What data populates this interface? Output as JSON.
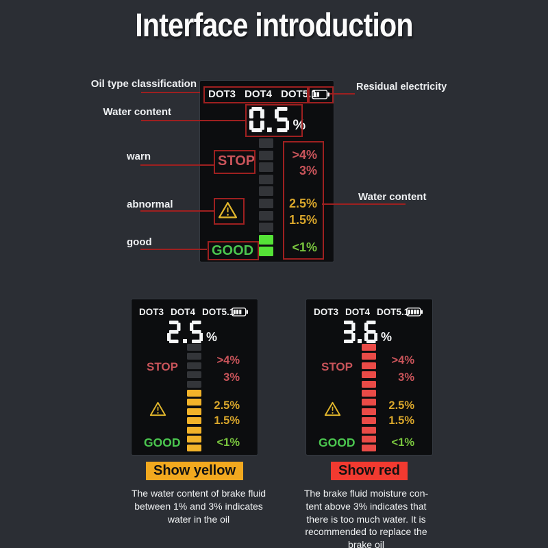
{
  "page": {
    "title": "Interface introduction"
  },
  "colors": {
    "background": "#2b2e34",
    "panel": "#0c0d0f",
    "annotation_red": "#9e2020",
    "digit_white": "#f5f6f7",
    "stop_red": "#c9545a",
    "warn_yellow": "#e0b52c",
    "good_green": "#4bc64f",
    "badge_yellow_bg": "#f2a91f",
    "badge_red_bg": "#f23a30"
  },
  "annotations": {
    "oil_type": "Oil type classification",
    "residual": "Residual electricity",
    "water_content_top": "Water content",
    "warn": "warn",
    "abnormal": "abnormal",
    "good": "good",
    "water_content_right": "Water content"
  },
  "displays": {
    "main": {
      "dots": [
        "DOT3",
        "DOT4",
        "DOT5.1"
      ],
      "battery_bars": 2,
      "reading": "0.5",
      "unit": "%",
      "stop": "STOP",
      "good": "GOOD",
      "scale": [
        {
          "text": ">4%",
          "color": "#c9545a"
        },
        {
          "text": "3%",
          "color": "#c9545a"
        },
        {
          "text": "2.5%",
          "color": "#d9a62b"
        },
        {
          "text": "1.5%",
          "color": "#d9a62b"
        },
        {
          "text": "<1%",
          "color": "#79c53e"
        }
      ],
      "bar": {
        "count": 10,
        "lit": 2,
        "on": "#55e337",
        "off": "#333539"
      }
    },
    "yellow": {
      "dots": [
        "DOT3",
        "DOT4",
        "DOT5.1"
      ],
      "battery_bars": 3,
      "reading": "2.5",
      "unit": "%",
      "stop": "STOP",
      "good": "GOOD",
      "scale": [
        {
          "text": ">4%",
          "color": "#c9545a"
        },
        {
          "text": "3%",
          "color": "#c9545a"
        },
        {
          "text": "2.5%",
          "color": "#d9a62b"
        },
        {
          "text": "1.5%",
          "color": "#d9a62b"
        },
        {
          "text": "<1%",
          "color": "#79c53e"
        }
      ],
      "bar": {
        "count": 12,
        "lit": 7,
        "on": "#f2b32a",
        "off": "#333539"
      }
    },
    "red": {
      "dots": [
        "DOT3",
        "DOT4",
        "DOT5.1"
      ],
      "battery_bars": 4,
      "reading": "3.6",
      "unit": "%",
      "stop": "STOP",
      "good": "GOOD",
      "scale": [
        {
          "text": ">4%",
          "color": "#c9545a"
        },
        {
          "text": "3%",
          "color": "#c9545a"
        },
        {
          "text": "2.5%",
          "color": "#d9a62b"
        },
        {
          "text": "1.5%",
          "color": "#d9a62b"
        },
        {
          "text": "<1%",
          "color": "#79c53e"
        }
      ],
      "bar": {
        "count": 12,
        "lit": 12,
        "on": "#ea4b47",
        "off": "#333539"
      }
    }
  },
  "captions": {
    "yellow": {
      "badge": "Show yellow",
      "lines": [
        "The water content of brake fluid",
        "between 1% and 3% indicates",
        "water in the oil"
      ]
    },
    "red": {
      "badge": "Show red",
      "lines": [
        "The brake fluid moisture con-",
        "tent above 3% indicates that",
        "there is too much water. It is",
        "recommended to replace the",
        "brake oil"
      ]
    }
  }
}
